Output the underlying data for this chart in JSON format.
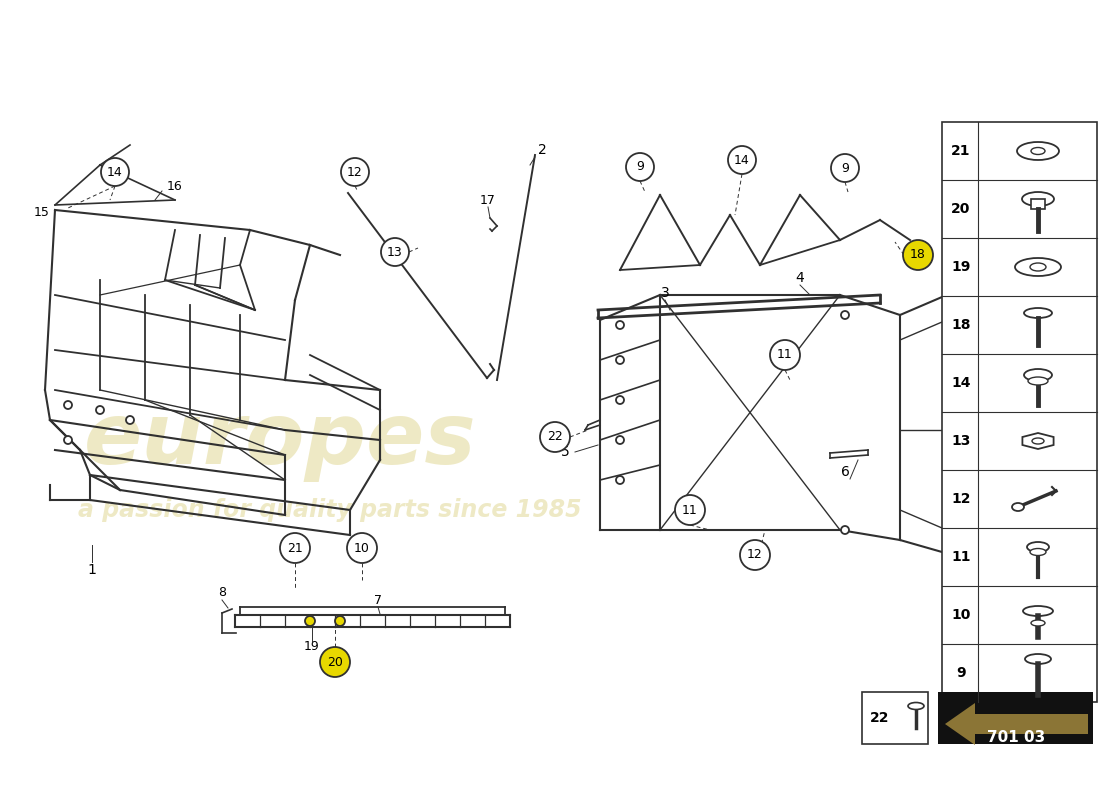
{
  "bg_color": "#ffffff",
  "frame_color": "#303030",
  "watermark_color": "#c8b840",
  "sidebar_items": [
    {
      "num": "21",
      "type": "washer_flat"
    },
    {
      "num": "20",
      "type": "bolt_flanged_hex"
    },
    {
      "num": "19",
      "type": "washer_large"
    },
    {
      "num": "18",
      "type": "pin_push"
    },
    {
      "num": "14",
      "type": "bolt_flanged_hex2"
    },
    {
      "num": "13",
      "type": "nut_serrated"
    },
    {
      "num": "12",
      "type": "bolt_long_angled"
    },
    {
      "num": "11",
      "type": "bolt_torx"
    },
    {
      "num": "10",
      "type": "pin_flange"
    },
    {
      "num": "9",
      "type": "pin_cap"
    }
  ],
  "bottom_code": "701 03"
}
